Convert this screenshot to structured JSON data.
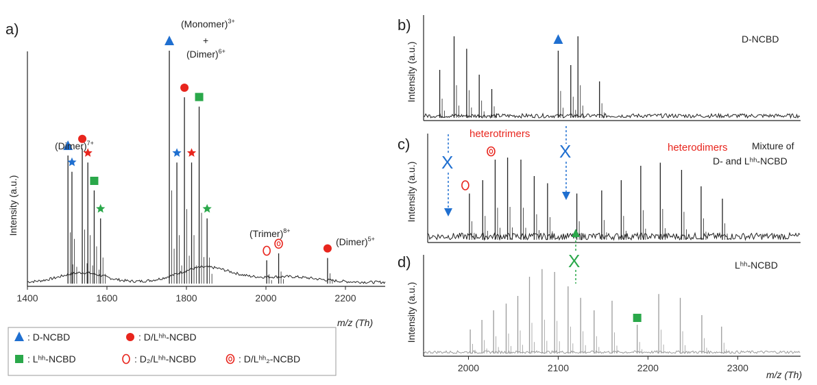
{
  "colors": {
    "d": "#1f6fd0",
    "dl": "#e8251d",
    "l": "#2aa84a",
    "spectrum": "#222222",
    "grey": "#9a9a9a"
  },
  "chart_data": [
    {
      "panel": "a)",
      "type": "line",
      "ylabel": "Intensity (a.u.)",
      "xlabel": "m/z (Th)",
      "xlim": [
        1400,
        2300
      ],
      "xticks": [
        "1400",
        "1600",
        "1800",
        "2000",
        "2200"
      ],
      "annotations": {
        "dimer7": "(Dimer)",
        "dimer7_charge": "7+",
        "monomer3": "(Monomer)",
        "monomer3_charge": "3+",
        "plus": "+",
        "dimer6": "(Dimer)",
        "dimer6_charge": "6+",
        "trimer8": "(Trimer)",
        "trimer8_charge": "8+",
        "dimer5": "(Dimer)",
        "dimer5_charge": "5+"
      },
      "peaks": [
        {
          "x": 1502,
          "h": 0.55,
          "marker": "triangle-blue"
        },
        {
          "x": 1512,
          "h": 0.48,
          "marker": "star-blue"
        },
        {
          "x": 1538,
          "h": 0.58,
          "marker": "circle-red"
        },
        {
          "x": 1552,
          "h": 0.52,
          "marker": "star-red"
        },
        {
          "x": 1568,
          "h": 0.4,
          "marker": "square-green"
        },
        {
          "x": 1584,
          "h": 0.28,
          "marker": "star-green"
        },
        {
          "x": 1757,
          "h": 1.0,
          "marker": "triangle-blue"
        },
        {
          "x": 1776,
          "h": 0.52,
          "marker": "star-blue"
        },
        {
          "x": 1795,
          "h": 0.8,
          "marker": "circle-red"
        },
        {
          "x": 1813,
          "h": 0.52,
          "marker": "star-red"
        },
        {
          "x": 1832,
          "h": 0.76,
          "marker": "square-green"
        },
        {
          "x": 1852,
          "h": 0.28,
          "marker": "star-green"
        },
        {
          "x": 2002,
          "h": 0.1,
          "marker": "open-circle-red"
        },
        {
          "x": 2032,
          "h": 0.13,
          "marker": "open-circle-dot-red"
        },
        {
          "x": 2155,
          "h": 0.11,
          "marker": "circle-red"
        }
      ],
      "legend": [
        {
          "marker": "triangle-blue",
          "label": ": D-NCBD"
        },
        {
          "marker": "circle-red",
          "label": ": D/Lʰʰ-NCBD"
        },
        {
          "marker": "square-green",
          "label": ": Lʰʰ-NCBD"
        },
        {
          "marker": "open-circle-red",
          "label": ": D₂/Lʰʰ-NCBD"
        },
        {
          "marker": "open-circle-dot-red",
          "label": ": D/Lʰʰ₂-NCBD"
        }
      ]
    },
    {
      "panel": "b)",
      "type": "line",
      "ylabel": "Intensity (a.u.)",
      "title": "D-NCBD",
      "peaks": [
        {
          "x": 1968,
          "h": 0.5
        },
        {
          "x": 1984,
          "h": 0.85
        },
        {
          "x": 1998,
          "h": 0.72
        },
        {
          "x": 2012,
          "h": 0.45
        },
        {
          "x": 2026,
          "h": 0.3
        },
        {
          "x": 2100,
          "h": 0.7,
          "marker": "triangle-blue"
        },
        {
          "x": 2114,
          "h": 0.55
        },
        {
          "x": 2122,
          "h": 0.85
        },
        {
          "x": 2146,
          "h": 0.38
        }
      ]
    },
    {
      "panel": "c)",
      "type": "line",
      "ylabel": "Intensity (a.u.)",
      "title_line1": "Mixture of",
      "title_line2": "D- and Lʰʰ-NCBD",
      "annotations": {
        "heterotrimers": "heterotrimers",
        "heterodimers": "heterodimers"
      },
      "peaks": [
        {
          "x": 1997,
          "h": 0.45,
          "marker": "open-circle-red"
        },
        {
          "x": 2012,
          "h": 0.58
        },
        {
          "x": 2026,
          "h": 0.78,
          "marker": "open-circle-dot-red"
        },
        {
          "x": 2040,
          "h": 0.8
        },
        {
          "x": 2055,
          "h": 0.78
        },
        {
          "x": 2070,
          "h": 0.62
        },
        {
          "x": 2085,
          "h": 0.55
        },
        {
          "x": 2118,
          "h": 0.45
        },
        {
          "x": 2146,
          "h": 0.48
        },
        {
          "x": 2168,
          "h": 0.58
        },
        {
          "x": 2190,
          "h": 0.72
        },
        {
          "x": 2212,
          "h": 0.75
        },
        {
          "x": 2236,
          "h": 0.68
        },
        {
          "x": 2258,
          "h": 0.52
        },
        {
          "x": 2282,
          "h": 0.4
        }
      ]
    },
    {
      "panel": "d)",
      "type": "line",
      "ylabel": "Intensity (a.u.)",
      "xlabel": "m/z (Th)",
      "title": "Lʰʰ-NCBD",
      "xlim": [
        1950,
        2370
      ],
      "xticks": [
        "2000",
        "2100",
        "2200",
        "2300"
      ],
      "peaks": [
        {
          "x": 2002,
          "h": 0.25
        },
        {
          "x": 2015,
          "h": 0.35
        },
        {
          "x": 2028,
          "h": 0.45
        },
        {
          "x": 2042,
          "h": 0.52
        },
        {
          "x": 2055,
          "h": 0.6
        },
        {
          "x": 2068,
          "h": 0.8
        },
        {
          "x": 2082,
          "h": 0.88
        },
        {
          "x": 2096,
          "h": 0.85
        },
        {
          "x": 2111,
          "h": 0.7
        },
        {
          "x": 2125,
          "h": 0.58
        },
        {
          "x": 2140,
          "h": 0.45
        },
        {
          "x": 2160,
          "h": 0.55
        },
        {
          "x": 2188,
          "h": 0.3,
          "marker": "square-green"
        },
        {
          "x": 2212,
          "h": 0.62
        },
        {
          "x": 2236,
          "h": 0.58
        },
        {
          "x": 2260,
          "h": 0.4
        },
        {
          "x": 2282,
          "h": 0.28
        }
      ]
    }
  ]
}
